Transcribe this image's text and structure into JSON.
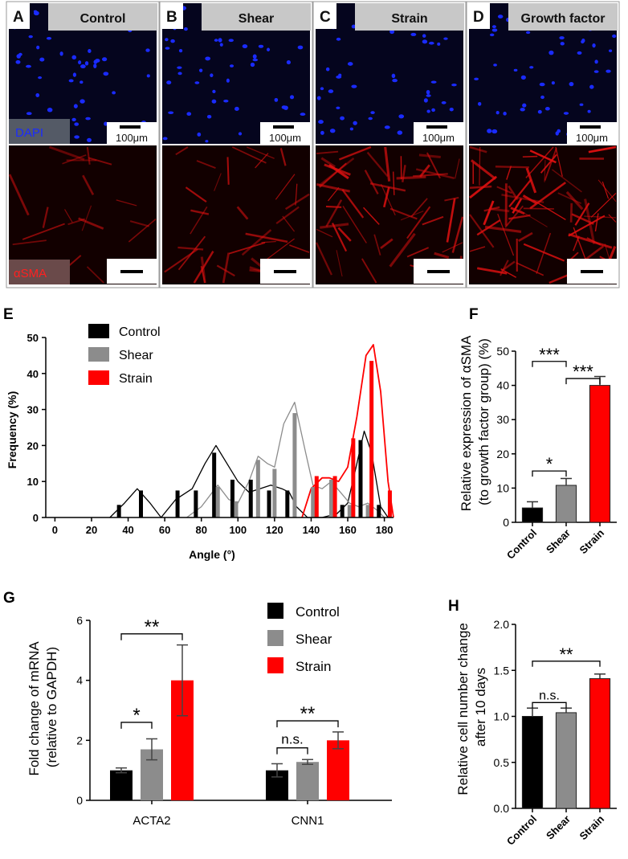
{
  "colors": {
    "control": "#000000",
    "shear": "#8c8c8c",
    "strain": "#ff0000",
    "dapi": "#1a2bff",
    "asma": "#e01010"
  },
  "micrographs": {
    "letters": [
      "A",
      "B",
      "C",
      "D"
    ],
    "groups": [
      "Control",
      "Shear",
      "Strain",
      "Growth factor"
    ],
    "dapi_label": "DAPI",
    "asma_label": "αSMA",
    "scale_label": "100μm"
  },
  "chart_data": [
    {
      "panel": "E",
      "type": "bar",
      "xlabel": "Angle (°)",
      "ylabel": "Frequency (%)",
      "xlim": [
        -5,
        185
      ],
      "ylim": [
        0,
        50
      ],
      "xticks": [
        0,
        20,
        40,
        60,
        80,
        100,
        120,
        140,
        160,
        180
      ],
      "yticks": [
        0,
        10,
        20,
        30,
        40,
        50
      ],
      "legend": "top-left",
      "series": [
        {
          "name": "Control",
          "color": "#000000",
          "x": [
            35,
            47,
            67,
            77,
            87,
            97,
            107,
            117,
            127,
            157,
            167,
            177
          ],
          "values": [
            3.5,
            7.5,
            7.5,
            7.5,
            18,
            10.5,
            10.5,
            7.5,
            7.5,
            3.5,
            21.5,
            3.5
          ],
          "curve_x": [
            30,
            38,
            45,
            52,
            58,
            66,
            75,
            82,
            88,
            94,
            100,
            106,
            112,
            118,
            124,
            128,
            132,
            138,
            146,
            154,
            160,
            165,
            169,
            173,
            178,
            182
          ],
          "curve_y": [
            0,
            4,
            8,
            4,
            0,
            5,
            8,
            15,
            20,
            15,
            10,
            7,
            8,
            9,
            8,
            7,
            3,
            0,
            0,
            1,
            4,
            15,
            24,
            18,
            3,
            0
          ]
        },
        {
          "name": "Shear",
          "color": "#8c8c8c",
          "x": [
            89,
            99,
            111,
            120,
            131,
            141,
            151,
            161,
            171
          ],
          "values": [
            8.5,
            4.5,
            16,
            13.5,
            29,
            8.5,
            10.5,
            3.5,
            3.5
          ],
          "curve_x": [
            72,
            80,
            89,
            95,
            100,
            106,
            111,
            116,
            120,
            125,
            131,
            137,
            141,
            146,
            151,
            156,
            161,
            166,
            171,
            176,
            180
          ],
          "curve_y": [
            0,
            3,
            9,
            5,
            4,
            10,
            17,
            15,
            14,
            26,
            32,
            18,
            9,
            8,
            10,
            7,
            4,
            3,
            4,
            2,
            0
          ]
        },
        {
          "name": "Strain",
          "color": "#ff0000",
          "x": [
            143,
            153,
            163,
            173,
            183
          ],
          "values": [
            11.5,
            11.5,
            22,
            43.5,
            7.5
          ],
          "curve_x": [
            135,
            140,
            146,
            150,
            155,
            160,
            165,
            170,
            174,
            178,
            182,
            185
          ],
          "curve_y": [
            0,
            8,
            11,
            11,
            10,
            14,
            28,
            45,
            48,
            35,
            10,
            0
          ]
        }
      ]
    },
    {
      "panel": "F",
      "type": "bar",
      "ylabel": "Relative expression of αSMA (to growth factor group) (%)",
      "ylim": [
        0,
        50
      ],
      "yticks": [
        0,
        10,
        20,
        30,
        40,
        50
      ],
      "categories": [
        "Control",
        "Shear",
        "Strain"
      ],
      "values": [
        4.2,
        10.8,
        40
      ],
      "errors": [
        1.8,
        2,
        2.6
      ],
      "significance": [
        {
          "pair": [
            1,
            2
          ],
          "label": "***",
          "level": 47
        },
        {
          "pair": [
            2,
            3
          ],
          "label": "***",
          "level": 42
        },
        {
          "pair": [
            1,
            2
          ],
          "label": "*",
          "level": 15
        }
      ]
    },
    {
      "panel": "G",
      "type": "bar",
      "ylabel": "Fold change of mRNA (relative to GAPDH)",
      "ylim": [
        0,
        6
      ],
      "yticks": [
        0,
        2,
        4,
        6
      ],
      "categories": [
        "ACTA2",
        "CNN1"
      ],
      "legend": "top-right",
      "series": [
        {
          "name": "Control",
          "color": "#000000",
          "values": [
            1.0,
            1.0
          ],
          "errors": [
            0.08,
            0.22
          ]
        },
        {
          "name": "Shear",
          "color": "#8c8c8c",
          "values": [
            1.7,
            1.28
          ],
          "errors": [
            0.35,
            0.08
          ]
        },
        {
          "name": "Strain",
          "color": "#ff0000",
          "values": [
            4.0,
            2.0
          ],
          "errors": [
            1.18,
            0.28
          ]
        }
      ],
      "significance": [
        {
          "group": 0,
          "from": 0,
          "to": 2,
          "label": "**",
          "level": 5.55
        },
        {
          "group": 0,
          "from": 0,
          "to": 1,
          "label": "*",
          "level": 2.6
        },
        {
          "group": 1,
          "from": 0,
          "to": 2,
          "label": "**",
          "level": 2.65
        },
        {
          "group": 1,
          "from": 0,
          "to": 1,
          "label": "n.s.",
          "level": 1.75
        }
      ]
    },
    {
      "panel": "H",
      "type": "bar",
      "ylabel": "Relative cell number change after 10 days",
      "ylim": [
        0,
        2.0
      ],
      "yticks": [
        "0.0",
        "0.5",
        "1.0",
        "1.5",
        "2.0"
      ],
      "categories": [
        "Control",
        "Shear",
        "Strain"
      ],
      "values": [
        1.0,
        1.04,
        1.41
      ],
      "errors": [
        0.09,
        0.05,
        0.05
      ],
      "significance": [
        {
          "pair": [
            1,
            3
          ],
          "label": "**",
          "level": 1.6
        },
        {
          "pair": [
            1,
            2
          ],
          "label": "n.s.",
          "level": 1.15
        }
      ]
    }
  ],
  "panel_letters": {
    "E": "E",
    "F": "F",
    "G": "G",
    "H": "H"
  }
}
